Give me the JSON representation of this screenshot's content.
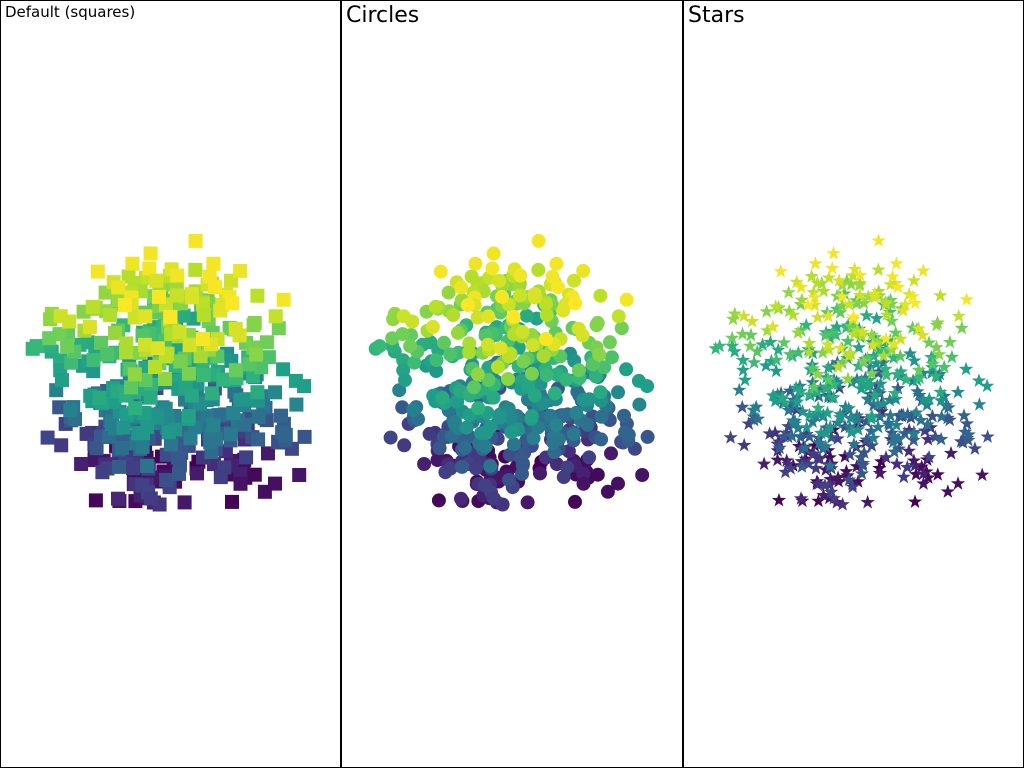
{
  "panels": [
    {
      "title": "Default (squares)",
      "marker": "square"
    },
    {
      "title": "Circles",
      "marker": "circle"
    },
    {
      "title": "Stars",
      "marker": "star"
    }
  ],
  "colormap": "viridis",
  "colormap_stops": [
    "#440154",
    "#482878",
    "#3e4989",
    "#31688e",
    "#26828e",
    "#1f9e89",
    "#35b779",
    "#6ece58",
    "#b5de2b",
    "#fde725"
  ]
}
